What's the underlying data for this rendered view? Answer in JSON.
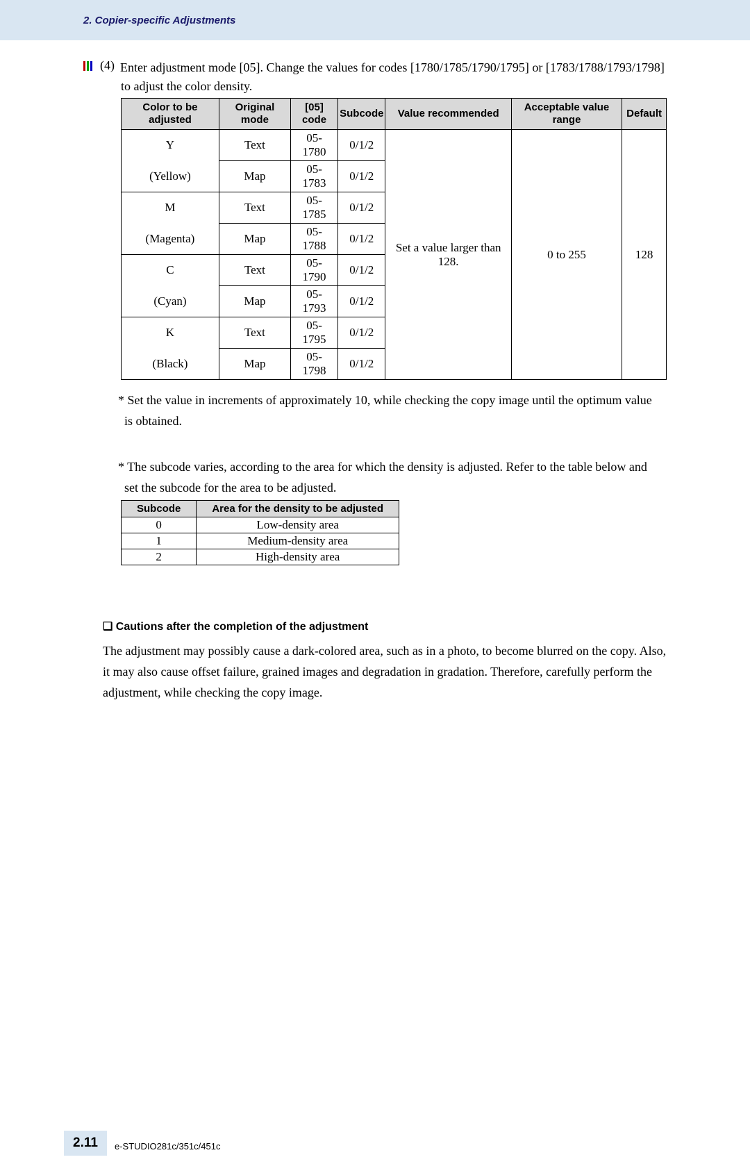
{
  "header": {
    "title": "2. Copier-specific Adjustments"
  },
  "step": {
    "num": "(4)",
    "line1": "Enter adjustment mode [05].  Change the values for codes [1780/1785/1790/1795] or [1783/1788/1793/1798]",
    "line2": "to adjust the color density."
  },
  "main_table": {
    "headers": {
      "color": "Color to be adjusted",
      "mode": "Original mode",
      "code": "[05] code",
      "subcode": "Subcode",
      "value": "Value recommended",
      "range": "Acceptable value range",
      "default": "Default"
    },
    "colors": [
      {
        "letter": "Y",
        "name": "(Yellow)",
        "rows": [
          {
            "mode": "Text",
            "code": "05-1780",
            "sub": "0/1/2"
          },
          {
            "mode": "Map",
            "code": "05-1783",
            "sub": "0/1/2"
          }
        ]
      },
      {
        "letter": "M",
        "name": "(Magenta)",
        "rows": [
          {
            "mode": "Text",
            "code": "05-1785",
            "sub": "0/1/2"
          },
          {
            "mode": "Map",
            "code": "05-1788",
            "sub": "0/1/2"
          }
        ]
      },
      {
        "letter": "C",
        "name": "(Cyan)",
        "rows": [
          {
            "mode": "Text",
            "code": "05-1790",
            "sub": "0/1/2"
          },
          {
            "mode": "Map",
            "code": "05-1793",
            "sub": "0/1/2"
          }
        ]
      },
      {
        "letter": "K",
        "name": "(Black)",
        "rows": [
          {
            "mode": "Text",
            "code": "05-1795",
            "sub": "0/1/2"
          },
          {
            "mode": "Map",
            "code": "05-1798",
            "sub": "0/1/2"
          }
        ]
      }
    ],
    "merged": {
      "value": "Set a value larger than 128.",
      "range": "0 to 255",
      "default": "128"
    }
  },
  "note1": {
    "l1": "* Set the value in increments of approximately 10, while checking the copy image until the optimum value",
    "l2": "  is obtained."
  },
  "note2": {
    "l1": "* The subcode varies, according to the area for which the density is adjusted.  Refer to the table below and",
    "l2": "  set the subcode for the area to be adjusted."
  },
  "sub_table": {
    "headers": {
      "sub": "Subcode",
      "area": "Area for the density to be adjusted"
    },
    "rows": [
      {
        "sub": "0",
        "area": "Low-density area"
      },
      {
        "sub": "1",
        "area": "Medium-density area"
      },
      {
        "sub": "2",
        "area": "High-density area"
      }
    ]
  },
  "caution": {
    "heading_prefix": "❏",
    "heading": "Cautions after the completion of the adjustment",
    "body1": "The adjustment may possibly cause a dark-colored area, such as in a photo, to become blurred on the copy.  Also,",
    "body2": "it may also cause offset failure, grained images and degradation in gradation.  Therefore, carefully perform the",
    "body3": "adjustment, while checking the copy image."
  },
  "footer": {
    "page": "2.11",
    "model": "e-STUDIO281c/351c/451c"
  }
}
